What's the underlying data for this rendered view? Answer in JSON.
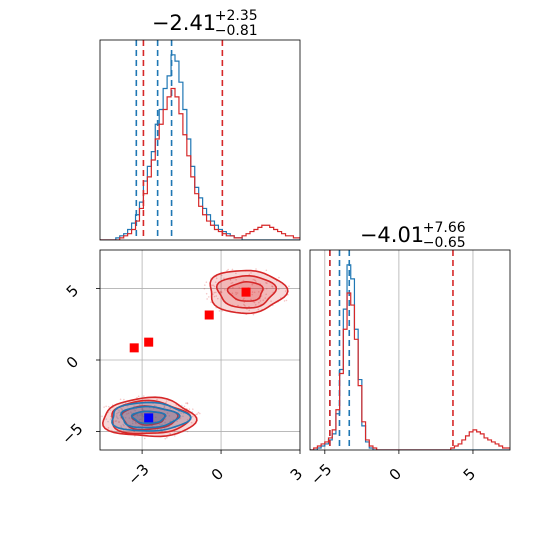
{
  "chart_data": {
    "type": "corner",
    "parameters": [
      {
        "title_value": "−2.41",
        "title_plus": "+2.35",
        "title_minus": "−0.81"
      },
      {
        "title_value": "−4.01",
        "title_plus": "+7.66",
        "title_minus": "−0.65"
      }
    ],
    "colors": {
      "blue": "#1f77b4",
      "red": "#d62728",
      "grid": "#b0b0b0",
      "blue_marker": "#0000ff",
      "red_marker": "#ff0000"
    },
    "panels": [
      {
        "id": "hist-param1",
        "type": "histogram",
        "xlim": [
          -4.6,
          3.0
        ],
        "grid": true,
        "series": [
          {
            "name": "",
            "color": "#1f77b4",
            "bin_start": -4.6,
            "bin_width": 0.15,
            "counts": [
              0,
              0,
              0,
              0,
              1,
              2,
              3,
              5,
              8,
              12,
              18,
              28,
              35,
              42,
              55,
              62,
              72,
              78,
              88,
              85,
              75,
              62,
              48,
              35,
              25,
              20,
              15,
              12,
              9,
              7,
              5,
              4,
              3,
              2,
              1,
              1,
              0,
              0,
              0,
              0,
              0,
              0,
              0,
              0,
              0,
              0,
              0,
              0,
              0,
              0,
              0
            ],
            "quantile_lines": [
              -3.22,
              -2.41,
              -1.88
            ]
          },
          {
            "name": "",
            "color": "#d62728",
            "bin_start": -4.6,
            "bin_width": 0.15,
            "counts": [
              0,
              0,
              0,
              0,
              0,
              1,
              2,
              3,
              5,
              9,
              15,
              22,
              30,
              38,
              48,
              55,
              62,
              68,
              72,
              68,
              60,
              50,
              40,
              30,
              22,
              16,
              12,
              9,
              7,
              5,
              4,
              3,
              2,
              2,
              1,
              1,
              2,
              3,
              4,
              5,
              6,
              7,
              7,
              6,
              5,
              4,
              3,
              2,
              2,
              1,
              1
            ],
            "quantile_lines": [
              -2.95,
              0.05
            ]
          }
        ]
      },
      {
        "id": "hist-param2",
        "type": "histogram",
        "xlim": [
          -6.0,
          7.5
        ],
        "xticks": [
          -5,
          0,
          5
        ],
        "xtick_labels": [
          "−5",
          "0",
          "5"
        ],
        "grid": true,
        "series": [
          {
            "name": "",
            "color": "#1f77b4",
            "bin_start": -6.0,
            "bin_width": 0.25,
            "counts": [
              0,
              0,
              1,
              2,
              3,
              5,
              8,
              18,
              40,
              70,
              92,
              85,
              60,
              35,
              12,
              4,
              1,
              0,
              0,
              0,
              0,
              0,
              0,
              0,
              0,
              0,
              0,
              0,
              0,
              0,
              0,
              0,
              0,
              0,
              0,
              0,
              0,
              0,
              0,
              0,
              0,
              0,
              0,
              0,
              0,
              0,
              0,
              0,
              0,
              0,
              0,
              0,
              0,
              0
            ],
            "quantile_lines": [
              -4.66,
              -4.01,
              -3.35
            ]
          },
          {
            "name": "",
            "color": "#d62728",
            "bin_start": -6.0,
            "bin_width": 0.25,
            "counts": [
              0,
              1,
              2,
              3,
              4,
              6,
              10,
              20,
              38,
              60,
              78,
              72,
              55,
              32,
              14,
              5,
              2,
              1,
              0,
              0,
              0,
              0,
              0,
              0,
              0,
              0,
              0,
              0,
              0,
              0,
              0,
              0,
              0,
              0,
              0,
              0,
              0,
              0,
              1,
              2,
              3,
              5,
              7,
              9,
              10,
              9,
              8,
              6,
              5,
              4,
              3,
              2,
              1,
              1
            ],
            "quantile_lines": [
              -4.66,
              3.65
            ]
          }
        ]
      },
      {
        "id": "scatter-2d",
        "type": "contour",
        "xlim": [
          -4.6,
          3.0
        ],
        "ylim": [
          -6.3,
          7.7
        ],
        "xticks": [
          -3,
          0,
          3
        ],
        "xtick_labels": [
          "−3",
          "0",
          "3"
        ],
        "yticks": [
          -5,
          0,
          5
        ],
        "ytick_labels": [
          "−5",
          "0",
          "5"
        ],
        "grid": true,
        "blobs": [
          {
            "color": "#d62728",
            "cx": -2.75,
            "cy": -4.05,
            "sx": 1.75,
            "sy": 1.35,
            "levels": [
              0.35,
              0.6,
              0.85,
              1.0
            ]
          },
          {
            "color": "#1f77b4",
            "cx": -2.75,
            "cy": -4.0,
            "sx": 1.55,
            "sy": 1.05,
            "levels": [
              0.4,
              0.7,
              0.95
            ]
          },
          {
            "color": "#d62728",
            "cx": 0.95,
            "cy": 4.8,
            "sx": 1.45,
            "sy": 1.5,
            "levels": [
              0.45,
              0.75,
              1.0
            ]
          }
        ],
        "markers": [
          {
            "x": 0.95,
            "y": 4.75,
            "color": "#ff0000"
          },
          {
            "x": -0.45,
            "y": 3.15,
            "color": "#ff0000"
          },
          {
            "x": -2.75,
            "y": 1.25,
            "color": "#ff0000"
          },
          {
            "x": -3.3,
            "y": 0.85,
            "color": "#ff0000"
          },
          {
            "x": -2.75,
            "y": -4.05,
            "color": "#0000ff"
          }
        ]
      }
    ]
  }
}
